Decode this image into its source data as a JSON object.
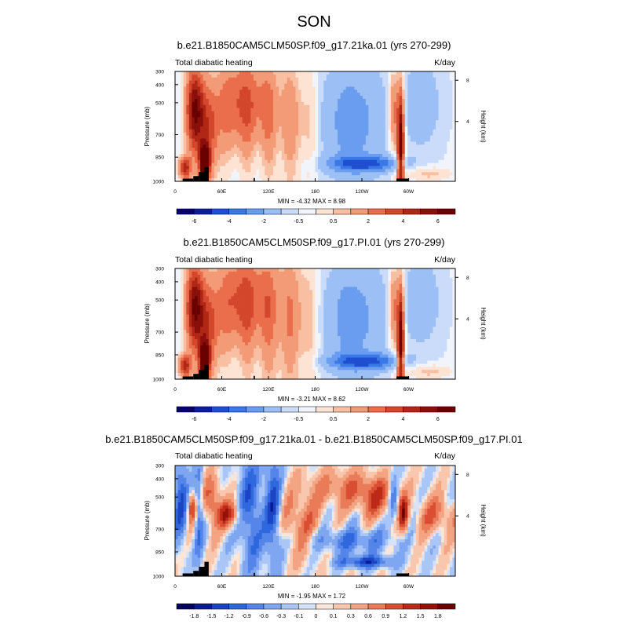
{
  "figure_title": "SON",
  "colors": {
    "seq_levels": [
      "#08006e",
      "#0a1e9c",
      "#1f4fd0",
      "#3a78e8",
      "#6a9cf0",
      "#9cc0f6",
      "#cadcfa",
      "#f2f4fb",
      "#fde3d3",
      "#f9bfa3",
      "#f39b77",
      "#ea6e4c",
      "#d3472d",
      "#b12715",
      "#8a0f0a",
      "#6a0000"
    ],
    "diff_levels": [
      "#050060",
      "#0a1b94",
      "#1b44c4",
      "#2f68dc",
      "#5585e8",
      "#7fa6f0",
      "#a9c6f6",
      "#d4e3fb",
      "#fde6d8",
      "#f8c7ad",
      "#f2a483",
      "#ea7b58",
      "#d94f33",
      "#bc2a17",
      "#951207",
      "#6a0000"
    ],
    "topography": "#000000",
    "axis": "#000000"
  },
  "chart_data": [
    {
      "type": "heatmap",
      "title": "b.e21.B1850CAM5CLM50SP.f09_g17.21ka.01 (yrs 270-299)",
      "left_label": "Total diabatic heating",
      "right_label": "K/day",
      "xlabel": "",
      "ylabel": "Pressure (mb)",
      "ylabel_right": "Height (km)",
      "x_ticks": [
        "0",
        "60E",
        "120E",
        "180",
        "120W",
        "60W"
      ],
      "y_ticks": [
        "300",
        "400",
        "500",
        "700",
        "850",
        "1000"
      ],
      "y_ticks_right": [
        "8",
        "4"
      ],
      "stats": "MIN =  -4.32  MAX =   8.98",
      "colorbar_labels": [
        "-6",
        "-4",
        "-2",
        "-0.5",
        "0.5",
        "2",
        "4",
        "6"
      ],
      "min": -4.32,
      "max": 8.98
    },
    {
      "type": "heatmap",
      "title": "b.e21.B1850CAM5CLM50SP.f09_g17.PI.01 (yrs 270-299)",
      "left_label": "Total diabatic heating",
      "right_label": "K/day",
      "xlabel": "",
      "ylabel": "Pressure (mb)",
      "ylabel_right": "Height (km)",
      "x_ticks": [
        "0",
        "60E",
        "120E",
        "180",
        "120W",
        "60W"
      ],
      "y_ticks": [
        "300",
        "400",
        "500",
        "700",
        "850",
        "1000"
      ],
      "y_ticks_right": [
        "8",
        "4"
      ],
      "stats": "MIN =  -3.21  MAX =   8.62",
      "colorbar_labels": [
        "-6",
        "-4",
        "-2",
        "-0.5",
        "0.5",
        "2",
        "4",
        "6"
      ],
      "min": -3.21,
      "max": 8.62
    },
    {
      "type": "heatmap",
      "title": "b.e21.B1850CAM5CLM50SP.f09_g17.21ka.01 - b.e21.B1850CAM5CLM50SP.f09_g17.PI.01",
      "left_label": "Total diabatic heating",
      "right_label": "K/day",
      "xlabel": "",
      "ylabel": "Pressure (mb)",
      "ylabel_right": "Height (km)",
      "x_ticks": [
        "0",
        "60E",
        "120E",
        "180",
        "120W",
        "60W"
      ],
      "y_ticks": [
        "300",
        "400",
        "500",
        "700",
        "850",
        "1000"
      ],
      "y_ticks_right": [
        "8",
        "4"
      ],
      "stats": "MIN =  -1.95  MAX =   1.72",
      "colorbar_labels": [
        "-1.8",
        "-1.5",
        "-1.2",
        "-0.9",
        "-0.6",
        "-0.3",
        "-0.1",
        "0",
        "0.1",
        "0.3",
        "0.6",
        "0.9",
        "1.2",
        "1.5",
        "1.8"
      ],
      "min": -1.95,
      "max": 1.72
    }
  ]
}
